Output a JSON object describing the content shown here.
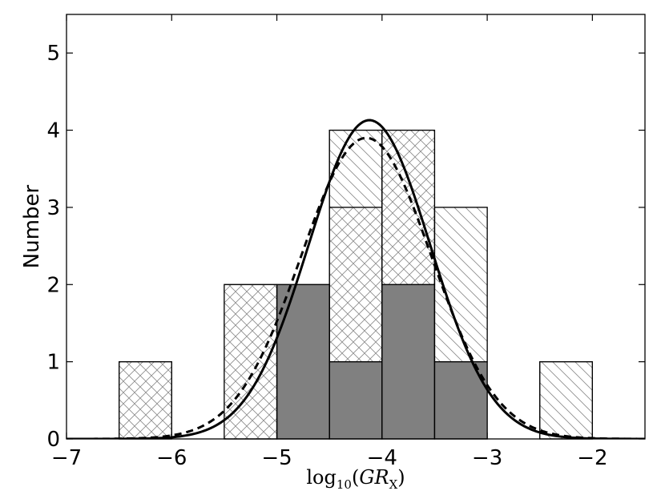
{
  "chart_data": {
    "type": "bar",
    "title": "",
    "xlabel": {
      "base": "log",
      "base_sub": "10",
      "arg_open": "(",
      "arg_main": "GR",
      "arg_sub": "X",
      "arg_close": ")"
    },
    "ylabel": "Number",
    "xlim": [
      -7,
      -1.5
    ],
    "ylim": [
      0,
      5.5
    ],
    "xticks": [
      -7,
      -6,
      -5,
      -4,
      -3,
      -2
    ],
    "xtick_labels": [
      "−7",
      "−6",
      "−5",
      "−4",
      "−3",
      "−2"
    ],
    "yticks": [
      0,
      1,
      2,
      3,
      4,
      5
    ],
    "ytick_labels": [
      "0",
      "1",
      "2",
      "3",
      "4",
      "5"
    ],
    "bin_width": 0.5,
    "stacked_series": [
      {
        "style": "solid-gray",
        "fill_color": "#808080",
        "bins": [
          {
            "x0": -5.0,
            "height": 2
          },
          {
            "x0": -4.5,
            "height": 1
          },
          {
            "x0": -4.0,
            "height": 2
          },
          {
            "x0": -3.5,
            "height": 1
          }
        ]
      },
      {
        "style": "crosshatch",
        "bins": [
          {
            "x0": -6.5,
            "height": 1
          },
          {
            "x0": -5.5,
            "height": 2
          },
          {
            "x0": -4.5,
            "height": 2
          },
          {
            "x0": -4.0,
            "height": 2
          }
        ]
      },
      {
        "style": "diagonal-hatch",
        "bins": [
          {
            "x0": -4.5,
            "height": 1
          },
          {
            "x0": -3.5,
            "height": 2
          },
          {
            "x0": -2.5,
            "height": 1
          }
        ]
      }
    ],
    "outline_totals": [
      {
        "x0": -6.5,
        "total": 1
      },
      {
        "x0": -5.5,
        "total": 2
      },
      {
        "x0": -5.0,
        "total": 2
      },
      {
        "x0": -4.5,
        "total": 4
      },
      {
        "x0": -4.0,
        "total": 4
      },
      {
        "x0": -3.5,
        "total": 3
      },
      {
        "x0": -2.5,
        "total": 1
      }
    ],
    "curves": [
      {
        "style": "solid",
        "mean": -4.12,
        "sigma": 0.58,
        "peak": 4.13
      },
      {
        "style": "dashed",
        "mean": -4.15,
        "sigma": 0.62,
        "peak": 3.9
      }
    ]
  }
}
